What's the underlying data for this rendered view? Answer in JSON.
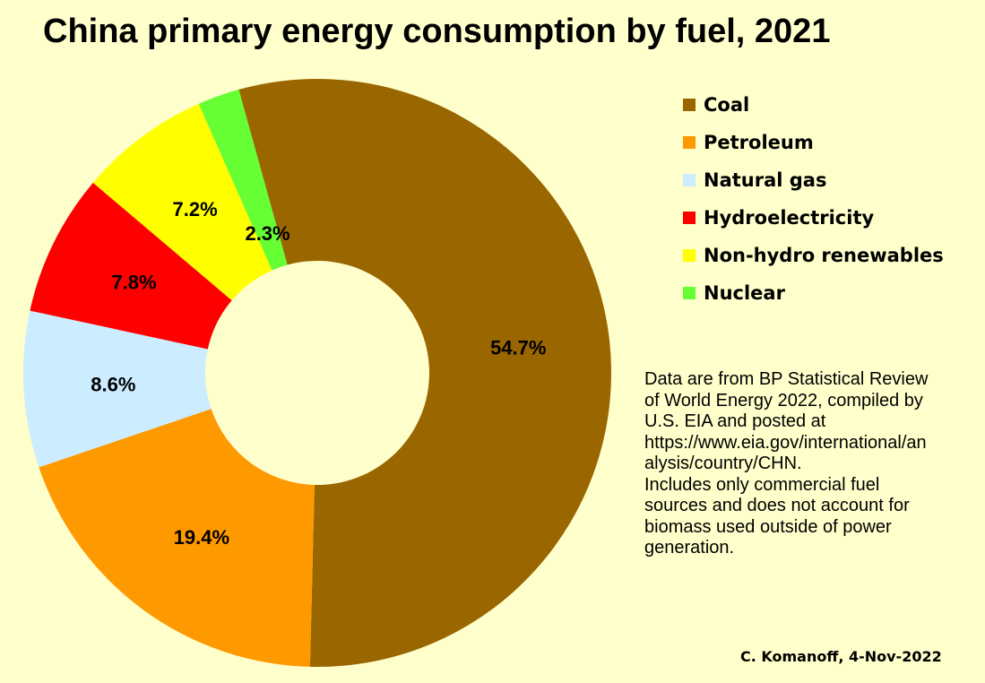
{
  "chart_data": {
    "type": "pie",
    "title": "China primary energy consumption by fuel, 2021",
    "categories": [
      "Coal",
      "Petroleum",
      "Natural gas",
      "Hydroelectricity",
      "Non-hydro renewables",
      "Nuclear"
    ],
    "values": [
      54.7,
      19.4,
      8.6,
      7.8,
      7.2,
      2.3
    ],
    "value_labels": [
      "54.7%",
      "19.4%",
      "8.6%",
      "7.8%",
      "7.2%",
      "2.3%"
    ],
    "colors": [
      "#996600",
      "#FF9900",
      "#CCECFF",
      "#FF0000",
      "#FFFF00",
      "#66FF33"
    ],
    "legend_position": "right",
    "hole": "donut"
  },
  "note": "Data are from BP Statistical Review\nof World Energy 2022, compiled by\nU.S. EIA and posted at\nhttps://www.eia.gov/international/an\nalysis/country/CHN.\nIncludes only commercial fuel\nsources and does not account for\nbiomass used outside of power\ngeneration.",
  "credit": "C. Komanoff, 4-Nov-2022"
}
